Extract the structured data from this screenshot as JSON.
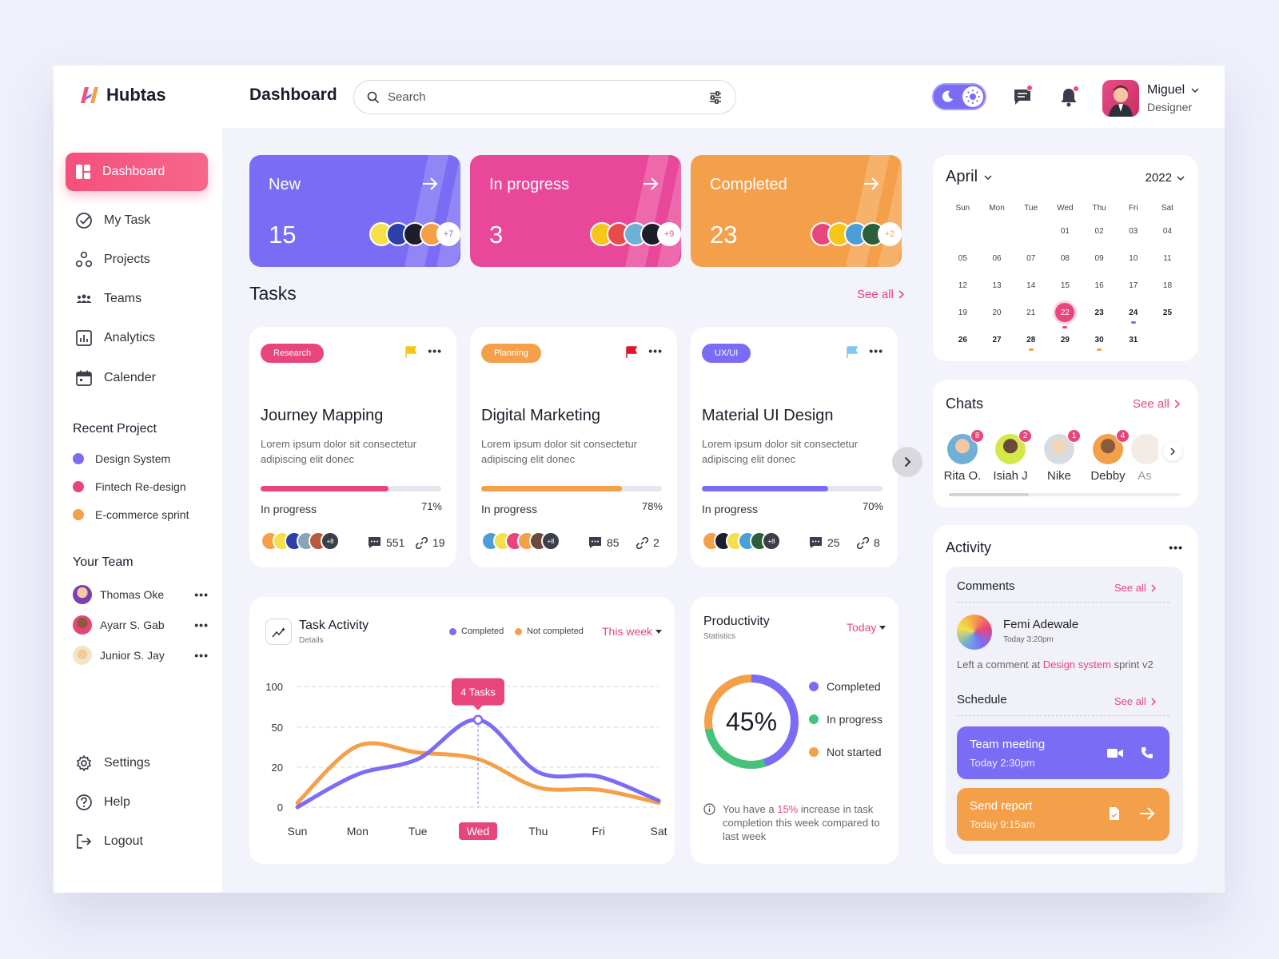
{
  "app": {
    "name": "Hubtas",
    "page_title": "Dashboard"
  },
  "search": {
    "placeholder": "Search"
  },
  "profile": {
    "name": "Miguel",
    "role": "Designer"
  },
  "sidebar": {
    "nav": [
      "Dashboard",
      "My Task",
      "Projects",
      "Teams",
      "Analytics",
      "Calender"
    ],
    "recent_title": "Recent Project",
    "projects": [
      {
        "name": "Design System",
        "color": "#7b6cf6"
      },
      {
        "name": "Fintech Re-design",
        "color": "#e8467a"
      },
      {
        "name": "E-commerce sprint",
        "color": "#f4a04a"
      }
    ],
    "team_title": "Your Team",
    "team": [
      "Thomas Oke",
      "Ayarr S. Gab",
      "Junior S. Jay"
    ],
    "bottom": [
      "Settings",
      "Help",
      "Logout"
    ]
  },
  "status_cards": [
    {
      "label": "New",
      "count": "15",
      "more": "+7",
      "color": "#7b6cf6"
    },
    {
      "label": "In progress",
      "count": "3",
      "more": "+9",
      "color": "#e9489a"
    },
    {
      "label": "Completed",
      "count": "23",
      "more": "+2",
      "color": "#f4a04a"
    }
  ],
  "tasks": {
    "title": "Tasks",
    "see_all": "See all",
    "items": [
      {
        "tag": "Research",
        "tag_color": "#e8467a",
        "flag_color": "#f5c518",
        "title": "Journey Mapping",
        "desc": "Lorem ipsum dolor sit consectetur adipiscing elit donec",
        "status": "In progress",
        "percent": "71%",
        "progress": 0.71,
        "bar_color": "#e8467a",
        "more": "+8",
        "comments": "551",
        "links": "19"
      },
      {
        "tag": "Planning",
        "tag_color": "#f4a04a",
        "flag_color": "#e0142b",
        "title": "Digital Marketing",
        "desc": "Lorem ipsum dolor sit consectetur adipiscing elit donec",
        "status": "In progress",
        "percent": "78%",
        "progress": 0.78,
        "bar_color": "#f4a04a",
        "more": "+8",
        "comments": "85",
        "links": "2"
      },
      {
        "tag": "UX/UI",
        "tag_color": "#7b6cf6",
        "flag_color": "#7dc8f2",
        "title": "Material UI Design",
        "desc": "Lorem ipsum dolor sit consectetur adipiscing elit donec",
        "status": "In progress",
        "percent": "70%",
        "progress": 0.7,
        "bar_color": "#7b6cf6",
        "more": "+8",
        "comments": "25",
        "links": "8"
      }
    ]
  },
  "task_activity": {
    "title": "Task Activity",
    "subtitle": "Details",
    "legend_completed": "Completed",
    "legend_not_completed": "Not completed",
    "period": "This week",
    "tooltip": "4 Tasks"
  },
  "chart_data": {
    "type": "line",
    "categories": [
      "Sun",
      "Mon",
      "Tue",
      "Wed",
      "Thu",
      "Fri",
      "Sat"
    ],
    "y_ticks": [
      "100",
      "50",
      "20",
      "0"
    ],
    "highlight": "Wed",
    "series": [
      {
        "name": "Completed",
        "color": "#7b6cf6",
        "values": [
          0,
          15,
          22,
          40,
          16,
          14,
          3
        ]
      },
      {
        "name": "Not completed",
        "color": "#f4a04a",
        "values": [
          2,
          28,
          25,
          22,
          9,
          8,
          2
        ]
      }
    ]
  },
  "productivity": {
    "title": "Productivity",
    "subtitle": "Statistics",
    "period": "Today",
    "percent": "45%",
    "legend": [
      "Completed",
      "In progress",
      "Not started"
    ],
    "note_a": "You have a",
    "note_hl": "15%",
    "note_b": "increase in task completion this week compared to last week"
  },
  "calendar": {
    "month": "April",
    "year": "2022",
    "weekdays": [
      "Sun",
      "Mon",
      "Tue",
      "Wed",
      "Thu",
      "Fri",
      "Sat"
    ],
    "weeks": [
      [
        "",
        "",
        "",
        "01",
        "02",
        "03",
        "04"
      ],
      [
        "05",
        "06",
        "07",
        "08",
        "09",
        "10",
        "11"
      ],
      [
        "12",
        "13",
        "14",
        "15",
        "16",
        "17",
        "18"
      ],
      [
        "19",
        "20",
        "21",
        "22",
        "23",
        "24",
        "25"
      ],
      [
        "26",
        "27",
        "28",
        "29",
        "30",
        "31",
        ""
      ]
    ],
    "selected": "22"
  },
  "chats": {
    "title": "Chats",
    "see_all": "See all",
    "users": [
      {
        "name": "Rita O.",
        "count": "8"
      },
      {
        "name": "Isiah J",
        "count": "2"
      },
      {
        "name": "Nike",
        "count": "1"
      },
      {
        "name": "Debby",
        "count": "4"
      },
      {
        "name": "As",
        "count": ""
      }
    ]
  },
  "activity": {
    "title": "Activity",
    "comments_title": "Comments",
    "see_all": "See all",
    "comment_user": "Femi Adewale",
    "comment_time": "Today 3:20pm",
    "comment_a": "Left a comment at",
    "comment_link": "Design system",
    "comment_b": "sprint v2",
    "schedule_title": "Schedule",
    "schedule": [
      {
        "title": "Team meeting",
        "time": "Today 2:30pm",
        "color": "#7b6cf6"
      },
      {
        "title": "Send report",
        "time": "Today 9:15am",
        "color": "#f4a04a"
      }
    ]
  }
}
